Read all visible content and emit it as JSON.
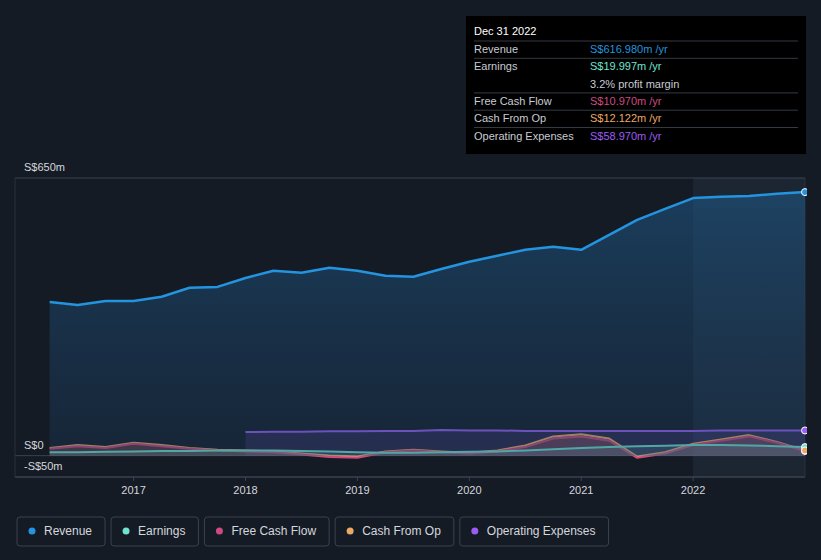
{
  "chart_data": {
    "type": "line",
    "x": [
      2016.25,
      2016.5,
      2016.75,
      2017.0,
      2017.25,
      2017.5,
      2017.75,
      2018.0,
      2018.25,
      2018.5,
      2018.75,
      2019.0,
      2019.25,
      2019.5,
      2019.75,
      2020.0,
      2020.25,
      2020.5,
      2020.75,
      2021.0,
      2021.25,
      2021.5,
      2021.75,
      2022.0,
      2022.25,
      2022.5,
      2022.75,
      2023.0
    ],
    "xlim": [
      2015.94,
      2023.0
    ],
    "xticks": [
      2017,
      2018,
      2019,
      2020,
      2021,
      2022
    ],
    "ylim": [
      -50,
      650
    ],
    "yticks": [
      {
        "value": -50,
        "label": "-S$50m"
      },
      {
        "value": 0,
        "label": "S$0"
      },
      {
        "value": 650,
        "label": "S$650m"
      }
    ],
    "grid": true,
    "legend": "bottom",
    "series": [
      {
        "name": "Revenue",
        "color": "#2394df",
        "values": [
          360,
          353,
          362,
          362,
          372,
          393,
          395,
          416,
          433,
          428,
          440,
          433,
          421,
          419,
          437,
          454,
          468,
          482,
          489,
          482,
          517,
          552,
          578,
          603,
          606,
          608,
          613,
          616.98
        ]
      },
      {
        "name": "Earnings",
        "color": "#6fe3cf",
        "values": [
          8,
          8,
          9,
          10,
          11,
          11,
          12,
          12,
          12,
          11,
          10,
          8,
          7,
          7,
          8,
          9,
          10,
          12,
          15,
          18,
          20,
          22,
          23,
          25,
          25,
          24,
          22,
          20.0
        ]
      },
      {
        "name": "Free Cash Flow",
        "color": "#cc4a80",
        "values": [
          16,
          22,
          18,
          28,
          22,
          16,
          12,
          10,
          8,
          3,
          -3,
          -5,
          8,
          12,
          8,
          5,
          10,
          20,
          40,
          45,
          35,
          -5,
          5,
          25,
          35,
          45,
          30,
          10.97
        ]
      },
      {
        "name": "Cash From Op",
        "color": "#eba867",
        "values": [
          18,
          25,
          20,
          30,
          25,
          18,
          14,
          12,
          10,
          5,
          0,
          -2,
          10,
          14,
          10,
          7,
          12,
          24,
          45,
          50,
          40,
          -2,
          8,
          28,
          38,
          48,
          32,
          12.12
        ]
      },
      {
        "name": "Operating Expenses",
        "color": "#9c5cf4",
        "values": [
          null,
          null,
          null,
          null,
          null,
          null,
          null,
          55,
          56,
          56,
          57,
          57,
          58,
          58,
          60,
          59,
          59,
          58,
          58,
          58,
          58,
          58,
          58,
          58,
          59,
          59,
          59,
          58.97
        ]
      }
    ],
    "annotation": {
      "date": "Dec 31 2022",
      "rows": [
        {
          "label": "Revenue",
          "value": "S$616.980m /yr"
        },
        {
          "label": "Earnings",
          "value": "S$19.997m /yr"
        },
        {
          "label": "Free Cash Flow",
          "value": "S$10.970m /yr"
        },
        {
          "label": "Cash From Op",
          "value": "S$12.122m /yr"
        },
        {
          "label": "Operating Expenses",
          "value": "S$58.970m /yr"
        }
      ],
      "margin": "3.2% profit margin"
    }
  }
}
